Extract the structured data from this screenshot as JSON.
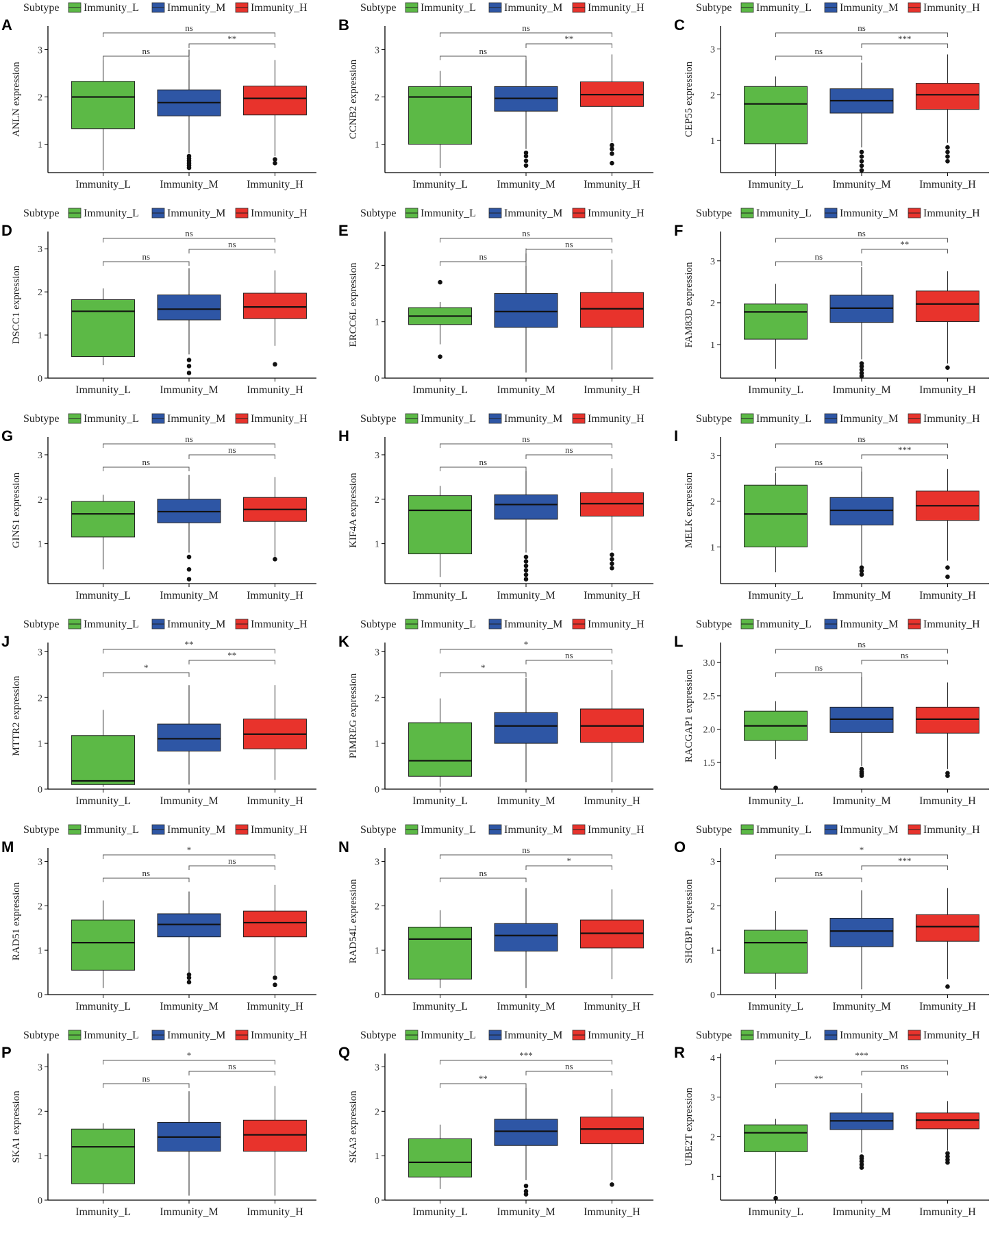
{
  "figure": {
    "legend_title": "Subtype",
    "groups": [
      "Immunity_L",
      "Immunity_M",
      "Immunity_H"
    ],
    "colors": {
      "Immunity_L": "#5cb946",
      "Immunity_M": "#2e56a5",
      "Immunity_H": "#e8332c"
    }
  },
  "chart_data": [
    {
      "letter": "A",
      "type": "box",
      "ylabel": "ANLN expression",
      "ylim": [
        0.4,
        3.5
      ],
      "yticks": [
        1,
        2,
        3
      ],
      "boxes": [
        {
          "q1": 1.33,
          "med": 2.0,
          "q3": 2.33,
          "wlo": 0.45,
          "whi": 2.85,
          "out": []
        },
        {
          "q1": 1.6,
          "med": 1.88,
          "q3": 2.15,
          "wlo": 0.82,
          "whi": 3.0,
          "out": [
            0.5,
            0.55,
            0.6,
            0.65,
            0.7,
            0.75
          ]
        },
        {
          "q1": 1.62,
          "med": 1.97,
          "q3": 2.23,
          "wlo": 0.75,
          "whi": 2.78,
          "out": [
            0.6,
            0.68
          ]
        }
      ],
      "sig": {
        "L_M": "ns",
        "M_H": "**",
        "L_H": "ns"
      }
    },
    {
      "letter": "B",
      "type": "box",
      "ylabel": "CCNB2 expression",
      "ylim": [
        0.4,
        3.5
      ],
      "yticks": [
        1,
        2,
        3
      ],
      "boxes": [
        {
          "q1": 1.0,
          "med": 2.0,
          "q3": 2.22,
          "wlo": 0.5,
          "whi": 2.55,
          "out": []
        },
        {
          "q1": 1.7,
          "med": 1.97,
          "q3": 2.22,
          "wlo": 0.9,
          "whi": 2.85,
          "out": [
            0.55,
            0.65,
            0.75,
            0.82
          ]
        },
        {
          "q1": 1.8,
          "med": 2.05,
          "q3": 2.32,
          "wlo": 1.05,
          "whi": 2.9,
          "out": [
            0.6,
            0.8,
            0.9,
            0.98
          ]
        }
      ],
      "sig": {
        "L_M": "ns",
        "M_H": "**",
        "L_H": "ns"
      }
    },
    {
      "letter": "C",
      "type": "box",
      "ylabel": "CEP55 expression",
      "ylim": [
        0.3,
        3.5
      ],
      "yticks": [
        1,
        2,
        3
      ],
      "boxes": [
        {
          "q1": 0.93,
          "med": 1.8,
          "q3": 2.18,
          "wlo": 0.3,
          "whi": 2.4,
          "out": []
        },
        {
          "q1": 1.6,
          "med": 1.87,
          "q3": 2.13,
          "wlo": 0.85,
          "whi": 2.7,
          "out": [
            0.35,
            0.45,
            0.55,
            0.65,
            0.75
          ]
        },
        {
          "q1": 1.68,
          "med": 2.0,
          "q3": 2.25,
          "wlo": 0.95,
          "whi": 2.88,
          "out": [
            0.55,
            0.65,
            0.75,
            0.85
          ]
        }
      ],
      "sig": {
        "L_M": "ns",
        "M_H": "***",
        "L_H": "ns"
      }
    },
    {
      "letter": "D",
      "type": "box",
      "ylabel": "DSCC1 expression",
      "ylim": [
        0.0,
        3.4
      ],
      "yticks": [
        0,
        1,
        2,
        3
      ],
      "boxes": [
        {
          "q1": 0.5,
          "med": 1.55,
          "q3": 1.82,
          "wlo": 0.3,
          "whi": 2.08,
          "out": []
        },
        {
          "q1": 1.35,
          "med": 1.6,
          "q3": 1.93,
          "wlo": 0.55,
          "whi": 2.55,
          "out": [
            0.12,
            0.28,
            0.42
          ]
        },
        {
          "q1": 1.38,
          "med": 1.65,
          "q3": 1.97,
          "wlo": 0.75,
          "whi": 2.5,
          "out": [
            0.32
          ]
        }
      ],
      "sig": {
        "L_M": "ns",
        "M_H": "ns",
        "L_H": "ns"
      }
    },
    {
      "letter": "E",
      "type": "box",
      "ylabel": "ERCC6L expression",
      "ylim": [
        0.0,
        2.6
      ],
      "yticks": [
        0,
        1,
        2
      ],
      "boxes": [
        {
          "q1": 0.95,
          "med": 1.1,
          "q3": 1.25,
          "wlo": 0.6,
          "whi": 1.35,
          "out": [
            0.38,
            1.7
          ]
        },
        {
          "q1": 0.9,
          "med": 1.18,
          "q3": 1.5,
          "wlo": 0.1,
          "whi": 2.3,
          "out": []
        },
        {
          "q1": 0.9,
          "med": 1.23,
          "q3": 1.52,
          "wlo": 0.15,
          "whi": 2.1,
          "out": []
        }
      ],
      "sig": {
        "L_M": "ns",
        "M_H": "ns",
        "L_H": "ns"
      }
    },
    {
      "letter": "F",
      "type": "box",
      "ylabel": "FAM83D expression",
      "ylim": [
        0.2,
        3.7
      ],
      "yticks": [
        1,
        2,
        3
      ],
      "boxes": [
        {
          "q1": 1.13,
          "med": 1.78,
          "q3": 1.97,
          "wlo": 0.42,
          "whi": 2.45,
          "out": []
        },
        {
          "q1": 1.53,
          "med": 1.87,
          "q3": 2.18,
          "wlo": 0.65,
          "whi": 2.85,
          "out": [
            0.25,
            0.32,
            0.4,
            0.48,
            0.55
          ]
        },
        {
          "q1": 1.55,
          "med": 1.97,
          "q3": 2.28,
          "wlo": 0.55,
          "whi": 2.75,
          "out": [
            0.45
          ]
        }
      ],
      "sig": {
        "L_M": "ns",
        "M_H": "**",
        "L_H": "ns"
      }
    },
    {
      "letter": "G",
      "type": "box",
      "ylabel": "GINS1 expression",
      "ylim": [
        0.1,
        3.4
      ],
      "yticks": [
        1,
        2,
        3
      ],
      "boxes": [
        {
          "q1": 1.15,
          "med": 1.67,
          "q3": 1.95,
          "wlo": 0.42,
          "whi": 2.1,
          "out": []
        },
        {
          "q1": 1.47,
          "med": 1.72,
          "q3": 2.0,
          "wlo": 0.8,
          "whi": 2.55,
          "out": [
            0.2,
            0.42,
            0.7
          ]
        },
        {
          "q1": 1.5,
          "med": 1.77,
          "q3": 2.04,
          "wlo": 0.7,
          "whi": 2.5,
          "out": [
            0.65
          ]
        }
      ],
      "sig": {
        "L_M": "ns",
        "M_H": "ns",
        "L_H": "ns"
      }
    },
    {
      "letter": "H",
      "type": "box",
      "ylabel": "KIF4A expression",
      "ylim": [
        0.1,
        3.4
      ],
      "yticks": [
        1,
        2,
        3
      ],
      "boxes": [
        {
          "q1": 0.77,
          "med": 1.75,
          "q3": 2.08,
          "wlo": 0.25,
          "whi": 2.3,
          "out": []
        },
        {
          "q1": 1.55,
          "med": 1.88,
          "q3": 2.1,
          "wlo": 0.8,
          "whi": 2.7,
          "out": [
            0.2,
            0.3,
            0.4,
            0.5,
            0.6,
            0.7
          ]
        },
        {
          "q1": 1.62,
          "med": 1.9,
          "q3": 2.15,
          "wlo": 0.85,
          "whi": 2.7,
          "out": [
            0.45,
            0.55,
            0.65,
            0.75
          ]
        }
      ],
      "sig": {
        "L_M": "ns",
        "M_H": "ns",
        "L_H": "ns"
      }
    },
    {
      "letter": "I",
      "type": "box",
      "ylabel": "MELK expression",
      "ylim": [
        0.2,
        3.4
      ],
      "yticks": [
        1,
        2,
        3
      ],
      "boxes": [
        {
          "q1": 1.0,
          "med": 1.72,
          "q3": 2.35,
          "wlo": 0.45,
          "whi": 2.62,
          "out": []
        },
        {
          "q1": 1.48,
          "med": 1.8,
          "q3": 2.08,
          "wlo": 0.6,
          "whi": 2.65,
          "out": [
            0.4,
            0.48,
            0.55
          ]
        },
        {
          "q1": 1.58,
          "med": 1.9,
          "q3": 2.22,
          "wlo": 0.7,
          "whi": 2.7,
          "out": [
            0.35,
            0.55
          ]
        }
      ],
      "sig": {
        "L_M": "ns",
        "M_H": "***",
        "L_H": "ns"
      }
    },
    {
      "letter": "J",
      "type": "box",
      "ylabel": "MTTR2 expression",
      "ylim": [
        0.0,
        3.2
      ],
      "yticks": [
        0,
        1,
        2,
        3
      ],
      "boxes": [
        {
          "q1": 0.1,
          "med": 0.18,
          "q3": 1.17,
          "wlo": 0.05,
          "whi": 1.73,
          "out": []
        },
        {
          "q1": 0.83,
          "med": 1.1,
          "q3": 1.42,
          "wlo": 0.1,
          "whi": 2.27,
          "out": []
        },
        {
          "q1": 0.88,
          "med": 1.2,
          "q3": 1.53,
          "wlo": 0.2,
          "whi": 2.27,
          "out": []
        }
      ],
      "sig": {
        "L_M": "*",
        "M_H": "**",
        "L_H": "**"
      }
    },
    {
      "letter": "K",
      "type": "box",
      "ylabel": "PIMREG expression",
      "ylim": [
        0.0,
        3.2
      ],
      "yticks": [
        0,
        1,
        2,
        3
      ],
      "boxes": [
        {
          "q1": 0.28,
          "med": 0.62,
          "q3": 1.45,
          "wlo": 0.05,
          "whi": 1.98,
          "out": []
        },
        {
          "q1": 1.0,
          "med": 1.38,
          "q3": 1.67,
          "wlo": 0.15,
          "whi": 2.43,
          "out": []
        },
        {
          "q1": 1.02,
          "med": 1.38,
          "q3": 1.75,
          "wlo": 0.15,
          "whi": 2.6,
          "out": []
        }
      ],
      "sig": {
        "L_M": "*",
        "M_H": "ns",
        "L_H": "*"
      }
    },
    {
      "letter": "L",
      "type": "box",
      "ylabel": "RACGAP1 expression",
      "ylim": [
        1.1,
        3.3
      ],
      "yticks": [
        1.5,
        2.0,
        2.5,
        3.0
      ],
      "boxes": [
        {
          "q1": 1.83,
          "med": 2.05,
          "q3": 2.27,
          "wlo": 1.55,
          "whi": 2.42,
          "out": [
            1.12
          ]
        },
        {
          "q1": 1.95,
          "med": 2.15,
          "q3": 2.33,
          "wlo": 1.45,
          "whi": 2.85,
          "out": [
            1.3,
            1.33,
            1.36,
            1.4
          ]
        },
        {
          "q1": 1.94,
          "med": 2.15,
          "q3": 2.33,
          "wlo": 1.4,
          "whi": 2.7,
          "out": [
            1.3,
            1.34
          ]
        }
      ],
      "sig": {
        "L_M": "ns",
        "M_H": "ns",
        "L_H": "ns"
      }
    },
    {
      "letter": "M",
      "type": "box",
      "ylabel": "RAD51 expression",
      "ylim": [
        0.0,
        3.3
      ],
      "yticks": [
        0,
        1,
        2,
        3
      ],
      "boxes": [
        {
          "q1": 0.55,
          "med": 1.17,
          "q3": 1.68,
          "wlo": 0.15,
          "whi": 2.12,
          "out": []
        },
        {
          "q1": 1.3,
          "med": 1.58,
          "q3": 1.82,
          "wlo": 0.5,
          "whi": 2.32,
          "out": [
            0.28,
            0.38,
            0.45
          ]
        },
        {
          "q1": 1.3,
          "med": 1.62,
          "q3": 1.88,
          "wlo": 0.45,
          "whi": 2.47,
          "out": [
            0.22,
            0.38
          ]
        }
      ],
      "sig": {
        "L_M": "ns",
        "M_H": "ns",
        "L_H": "*"
      }
    },
    {
      "letter": "N",
      "type": "box",
      "ylabel": "RAD54L expression",
      "ylim": [
        0.0,
        3.3
      ],
      "yticks": [
        0,
        1,
        2,
        3
      ],
      "boxes": [
        {
          "q1": 0.35,
          "med": 1.25,
          "q3": 1.52,
          "wlo": 0.15,
          "whi": 1.9,
          "out": []
        },
        {
          "q1": 0.98,
          "med": 1.33,
          "q3": 1.6,
          "wlo": 0.15,
          "whi": 2.4,
          "out": []
        },
        {
          "q1": 1.05,
          "med": 1.38,
          "q3": 1.68,
          "wlo": 0.35,
          "whi": 2.37,
          "out": []
        }
      ],
      "sig": {
        "L_M": "ns",
        "M_H": "*",
        "L_H": "ns"
      }
    },
    {
      "letter": "O",
      "type": "box",
      "ylabel": "SHCBP1 expression",
      "ylim": [
        0.0,
        3.3
      ],
      "yticks": [
        0,
        1,
        2,
        3
      ],
      "boxes": [
        {
          "q1": 0.48,
          "med": 1.17,
          "q3": 1.45,
          "wlo": 0.12,
          "whi": 1.88,
          "out": []
        },
        {
          "q1": 1.08,
          "med": 1.43,
          "q3": 1.72,
          "wlo": 0.12,
          "whi": 2.35,
          "out": []
        },
        {
          "q1": 1.2,
          "med": 1.53,
          "q3": 1.8,
          "wlo": 0.35,
          "whi": 2.4,
          "out": [
            0.18
          ]
        }
      ],
      "sig": {
        "L_M": "ns",
        "M_H": "***",
        "L_H": "*"
      }
    },
    {
      "letter": "P",
      "type": "box",
      "ylabel": "SKA1 expression",
      "ylim": [
        0.0,
        3.3
      ],
      "yticks": [
        0,
        1,
        2,
        3
      ],
      "boxes": [
        {
          "q1": 0.37,
          "med": 1.2,
          "q3": 1.6,
          "wlo": 0.15,
          "whi": 1.73,
          "out": []
        },
        {
          "q1": 1.1,
          "med": 1.42,
          "q3": 1.75,
          "wlo": 0.1,
          "whi": 2.45,
          "out": []
        },
        {
          "q1": 1.1,
          "med": 1.47,
          "q3": 1.8,
          "wlo": 0.1,
          "whi": 2.57,
          "out": []
        }
      ],
      "sig": {
        "L_M": "ns",
        "M_H": "ns",
        "L_H": "*"
      }
    },
    {
      "letter": "Q",
      "type": "box",
      "ylabel": "SKA3 expression",
      "ylim": [
        0.0,
        3.3
      ],
      "yticks": [
        0,
        1,
        2,
        3
      ],
      "boxes": [
        {
          "q1": 0.52,
          "med": 0.85,
          "q3": 1.38,
          "wlo": 0.25,
          "whi": 1.7,
          "out": []
        },
        {
          "q1": 1.23,
          "med": 1.55,
          "q3": 1.82,
          "wlo": 0.45,
          "whi": 2.57,
          "out": [
            0.13,
            0.2,
            0.32
          ]
        },
        {
          "q1": 1.27,
          "med": 1.6,
          "q3": 1.87,
          "wlo": 0.45,
          "whi": 2.5,
          "out": [
            0.35
          ]
        }
      ],
      "sig": {
        "L_M": "**",
        "M_H": "ns",
        "L_H": "***"
      }
    },
    {
      "letter": "R",
      "type": "box",
      "ylabel": "UBE2T expression",
      "ylim": [
        0.4,
        4.1
      ],
      "yticks": [
        1,
        2,
        3,
        4
      ],
      "boxes": [
        {
          "q1": 1.62,
          "med": 2.1,
          "q3": 2.3,
          "wlo": 0.55,
          "whi": 2.45,
          "out": [
            0.45
          ]
        },
        {
          "q1": 2.18,
          "med": 2.4,
          "q3": 2.6,
          "wlo": 1.6,
          "whi": 3.1,
          "out": [
            1.22,
            1.3,
            1.38,
            1.45,
            1.5
          ]
        },
        {
          "q1": 2.2,
          "med": 2.42,
          "q3": 2.6,
          "wlo": 1.65,
          "whi": 2.9,
          "out": [
            1.35,
            1.42,
            1.5,
            1.58
          ]
        }
      ],
      "sig": {
        "L_M": "**",
        "M_H": "ns",
        "L_H": "***"
      }
    }
  ]
}
